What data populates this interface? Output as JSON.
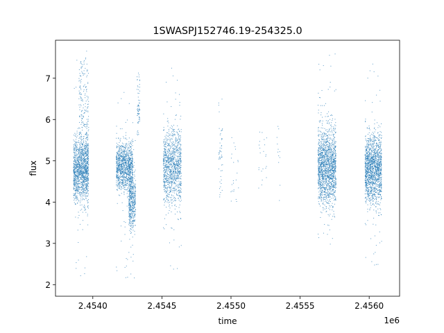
{
  "chart_data": {
    "type": "scatter",
    "title": "1SWASPJ152746.19-254325.0",
    "xlabel": "time",
    "ylabel": "flux",
    "x_offset_label": "1e6",
    "xlim": [
      2.45373,
      2.45622
    ],
    "ylim": [
      1.72,
      7.92
    ],
    "x_ticks": [
      2.454,
      2.4545,
      2.455,
      2.4555,
      2.456
    ],
    "x_tick_labels": [
      "2.4540",
      "2.4545",
      "2.4550",
      "2.4555",
      "2.4560"
    ],
    "y_ticks": [
      2,
      3,
      4,
      5,
      6,
      7
    ],
    "y_tick_labels": [
      "2",
      "3",
      "4",
      "5",
      "6",
      "7"
    ],
    "marker_color": "#1f77b4",
    "grid": false,
    "legend": "none",
    "series": [
      {
        "clusters": [
          {
            "x_range": [
              2.45386,
              2.45397
            ],
            "mean": 4.75,
            "spread": 0.38,
            "count": 1300,
            "outlier_range": [
              2.2,
              7.6
            ]
          },
          {
            "x_range": [
              2.4539,
              2.45397
            ],
            "mean": 6.1,
            "spread": 0.7,
            "count": 220,
            "outlier_range": [
              5.0,
              7.6
            ]
          },
          {
            "x_range": [
              2.45417,
              2.45429
            ],
            "mean": 4.85,
            "spread": 0.28,
            "count": 1100,
            "outlier_range": [
              2.1,
              6.8
            ]
          },
          {
            "x_range": [
              2.45426,
              2.45431
            ],
            "mean": 4.05,
            "spread": 0.35,
            "count": 450,
            "outlier_range": [
              2.0,
              5.5
            ]
          },
          {
            "x_range": [
              2.45432,
              2.45434
            ],
            "mean": 6.3,
            "spread": 0.35,
            "count": 70,
            "outlier_range": [
              5.8,
              7.3
            ]
          },
          {
            "x_range": [
              2.45451,
              2.45464
            ],
            "mean": 4.85,
            "spread": 0.45,
            "count": 1100,
            "outlier_range": [
              2.3,
              7.4
            ]
          },
          {
            "x_range": [
              2.45491,
              2.45494
            ],
            "mean": 5.3,
            "spread": 0.6,
            "count": 50,
            "outlier_range": [
              4.2,
              7.3
            ]
          },
          {
            "x_range": [
              2.455,
              2.45506
            ],
            "mean": 5.0,
            "spread": 0.5,
            "count": 22,
            "outlier_range": [
              3.9,
              6.1
            ]
          },
          {
            "x_range": [
              2.4552,
              2.45526
            ],
            "mean": 5.0,
            "spread": 0.5,
            "count": 22,
            "outlier_range": [
              4.4,
              6.1
            ]
          },
          {
            "x_range": [
              2.45533,
              2.45536
            ],
            "mean": 5.1,
            "spread": 0.4,
            "count": 12,
            "outlier_range": [
              3.8,
              5.7
            ]
          },
          {
            "x_range": [
              2.45563,
              2.45576
            ],
            "mean": 4.85,
            "spread": 0.45,
            "count": 1600,
            "outlier_range": [
              2.9,
              7.6
            ]
          },
          {
            "x_range": [
              2.45597,
              2.45609
            ],
            "mean": 4.8,
            "spread": 0.4,
            "count": 1500,
            "outlier_range": [
              2.4,
              7.5
            ]
          }
        ]
      }
    ]
  }
}
